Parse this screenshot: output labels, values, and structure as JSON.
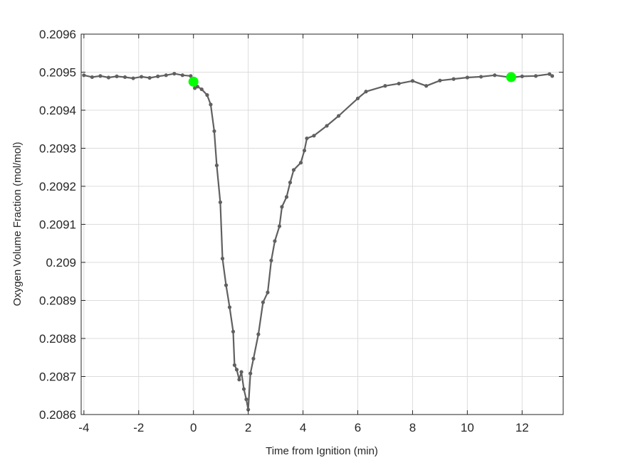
{
  "chart_data": {
    "type": "line",
    "title": "",
    "xlabel": "Time from Ignition (min)",
    "ylabel": "Oxygen Volume Fraction (mol/mol)",
    "xlim": [
      -4.1,
      13.5
    ],
    "ylim": [
      0.2086,
      0.2096
    ],
    "grid": true,
    "x_ticks": [
      -4,
      -2,
      0,
      2,
      4,
      6,
      8,
      10,
      12
    ],
    "x_tick_labels": [
      "-4",
      "-2",
      "0",
      "2",
      "4",
      "6",
      "8",
      "10",
      "12"
    ],
    "y_ticks": [
      0.2086,
      0.2087,
      0.2088,
      0.2089,
      0.209,
      0.2091,
      0.2092,
      0.2093,
      0.2094,
      0.2095,
      0.2096
    ],
    "y_tick_labels": [
      "0.2086",
      "0.2087",
      "0.2088",
      "0.2089",
      "0.209",
      "0.2091",
      "0.2092",
      "0.2093",
      "0.2094",
      "0.2095",
      "0.2096"
    ],
    "series": [
      {
        "color": "#606060",
        "marker": "dot",
        "x": [
          -4.0,
          -3.7,
          -3.4,
          -3.1,
          -2.8,
          -2.5,
          -2.2,
          -1.9,
          -1.6,
          -1.3,
          -1.0,
          -0.7,
          -0.4,
          -0.1,
          0,
          0.05,
          0.15,
          0.3,
          0.5,
          0.63,
          0.76,
          0.85,
          0.98,
          1.06,
          1.19,
          1.32,
          1.45,
          1.5,
          1.58,
          1.67,
          1.75,
          1.84,
          1.93,
          2.0,
          2.08,
          2.19,
          2.37,
          2.54,
          2.71,
          2.84,
          2.97,
          3.14,
          3.23,
          3.4,
          3.53,
          3.66,
          3.92,
          4.05,
          4.14,
          4.4,
          4.87,
          5.3,
          6.0,
          6.3,
          7.0,
          7.5,
          8.0,
          8.5,
          9.0,
          9.5,
          10.0,
          10.5,
          11.0,
          11.6,
          12.0,
          12.5,
          13.0,
          13.1
        ],
        "y": [
          0.209492,
          0.209487,
          0.20949,
          0.209486,
          0.209489,
          0.209487,
          0.209484,
          0.209488,
          0.209485,
          0.209489,
          0.209492,
          0.209496,
          0.209492,
          0.20949,
          0.209477,
          0.209458,
          0.209462,
          0.209455,
          0.20944,
          0.209415,
          0.209345,
          0.209255,
          0.209158,
          0.20901,
          0.20894,
          0.208882,
          0.208818,
          0.20873,
          0.208718,
          0.208692,
          0.208712,
          0.208667,
          0.20864,
          0.208613,
          0.208708,
          0.208747,
          0.208811,
          0.208895,
          0.208921,
          0.209005,
          0.209056,
          0.209095,
          0.209146,
          0.209172,
          0.20921,
          0.209243,
          0.209262,
          0.209294,
          0.209326,
          0.209333,
          0.209359,
          0.209385,
          0.209431,
          0.209449,
          0.209464,
          0.20947,
          0.209477,
          0.209464,
          0.209478,
          0.209482,
          0.209486,
          0.209488,
          0.209492,
          0.209486,
          0.209489,
          0.20949,
          0.209495,
          0.20949
        ]
      }
    ],
    "highlight_points": {
      "color": "#00ff00",
      "x": [
        0,
        11.6
      ],
      "y": [
        0.209475,
        0.209487
      ]
    }
  }
}
